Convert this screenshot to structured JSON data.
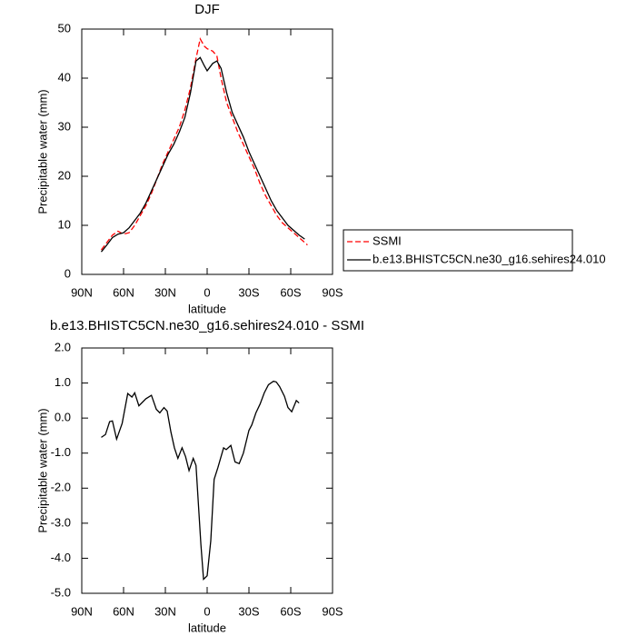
{
  "chart_data": [
    {
      "type": "line",
      "title": "DJF",
      "xlabel": "latitude",
      "ylabel": "Precipitable water (mm)",
      "xlim": [
        90,
        -90
      ],
      "xticks": [
        {
          "value": 90,
          "label": "90N"
        },
        {
          "value": 60,
          "label": "60N"
        },
        {
          "value": 30,
          "label": "30N"
        },
        0,
        {
          "value": -30,
          "label": "30S"
        },
        {
          "value": -60,
          "label": "60S"
        },
        {
          "value": -90,
          "label": "90S"
        }
      ],
      "ylim": [
        0,
        50
      ],
      "yticks": [
        0,
        10,
        20,
        30,
        40,
        50
      ],
      "legend": "outside-right",
      "series": [
        {
          "name": "SSMI",
          "color": "#ff0000",
          "dash": true,
          "x": [
            76,
            72,
            68,
            64,
            60,
            56,
            52,
            48,
            44,
            40,
            36,
            32,
            28,
            24,
            20,
            16,
            12,
            8,
            5,
            2,
            0,
            -4,
            -7,
            -10,
            -14,
            -18,
            -22,
            -26,
            -30,
            -34,
            -38,
            -42,
            -46,
            -50,
            -54,
            -58,
            -62,
            -66,
            -70,
            -72
          ],
          "values": [
            5,
            6.5,
            8,
            8.8,
            8.2,
            8.5,
            10,
            12,
            14,
            16.5,
            19.5,
            22.5,
            25,
            27.5,
            30,
            33.5,
            38,
            44,
            48,
            46.5,
            46,
            45.5,
            44.5,
            40,
            35,
            32,
            29,
            26.5,
            24,
            21.5,
            18.5,
            16,
            14,
            12,
            10.5,
            9.5,
            8.5,
            7.5,
            6.5,
            6
          ]
        },
        {
          "name": "b.e13.BHISTC5CN.ne30_g16.sehires24.010",
          "color": "#000000",
          "dash": false,
          "x": [
            76,
            72,
            68,
            64,
            60,
            56,
            52,
            48,
            44,
            40,
            36,
            32,
            28,
            24,
            20,
            16,
            12,
            8,
            5,
            2,
            0,
            -4,
            -7,
            -10,
            -14,
            -18,
            -22,
            -26,
            -30,
            -34,
            -38,
            -42,
            -46,
            -50,
            -54,
            -58,
            -62,
            -66,
            -70
          ],
          "values": [
            4.6,
            6,
            7.5,
            8.2,
            8.5,
            9.5,
            11,
            12.5,
            14.5,
            17,
            19.5,
            22,
            24.5,
            26.5,
            29,
            32,
            37,
            43.5,
            44.2,
            42.5,
            41.5,
            43,
            43.5,
            42,
            37,
            33,
            30.5,
            28,
            25,
            22.5,
            20,
            17.5,
            15,
            13,
            11.5,
            10,
            9,
            8,
            7.2
          ]
        }
      ]
    },
    {
      "type": "line",
      "title": "b.e13.BHISTC5CN.ne30_g16.sehires24.010 - SSMI",
      "xlabel": "latitude",
      "ylabel": "Precipitable water (mm)",
      "xlim": [
        90,
        -90
      ],
      "xticks": [
        {
          "value": 90,
          "label": "90N"
        },
        {
          "value": 60,
          "label": "60N"
        },
        {
          "value": 30,
          "label": "30N"
        },
        0,
        {
          "value": -30,
          "label": "30S"
        },
        {
          "value": -60,
          "label": "60S"
        },
        {
          "value": -90,
          "label": "90S"
        }
      ],
      "ylim": [
        -5,
        2
      ],
      "yticks": [
        {
          "value": -5,
          "label": "-5.0"
        },
        {
          "value": -4,
          "label": "-4.0"
        },
        {
          "value": -3,
          "label": "-3.0"
        },
        {
          "value": -2,
          "label": "-2.0"
        },
        {
          "value": -1,
          "label": "-1.0"
        },
        {
          "value": 0,
          "label": "0.0"
        },
        {
          "value": 1,
          "label": "1.0"
        },
        {
          "value": 2,
          "label": "2.0"
        }
      ],
      "series": [
        {
          "color": "#000000",
          "dash": false,
          "x": [
            76,
            73,
            70,
            68,
            65,
            61,
            57,
            54,
            52,
            49,
            44,
            40,
            36.5,
            34,
            31,
            28.7,
            26,
            23.5,
            21,
            18,
            15.5,
            13,
            10,
            8,
            4.5,
            2.6,
            0,
            -2.6,
            -5,
            -7.8,
            -11.8,
            -13.7,
            -17,
            -20,
            -23,
            -26,
            -30,
            -32,
            -35,
            -38,
            -41,
            -44,
            -47.6,
            -49.6,
            -52,
            -55.5,
            -58,
            -60.7,
            -64,
            -66
          ],
          "values": [
            -0.55,
            -0.47,
            -0.1,
            -0.08,
            -0.6,
            -0.15,
            0.7,
            0.6,
            0.72,
            0.35,
            0.55,
            0.65,
            0.25,
            0.15,
            0.3,
            0.2,
            -0.4,
            -0.85,
            -1.15,
            -0.85,
            -1.1,
            -1.5,
            -1.15,
            -1.35,
            -3.6,
            -4.6,
            -4.5,
            -3.5,
            -1.75,
            -1.4,
            -0.85,
            -0.9,
            -0.78,
            -1.25,
            -1.3,
            -1.0,
            -0.35,
            -0.2,
            0.15,
            0.4,
            0.72,
            0.95,
            1.05,
            1.03,
            0.9,
            0.62,
            0.3,
            0.18,
            0.5,
            0.43
          ]
        }
      ]
    }
  ]
}
